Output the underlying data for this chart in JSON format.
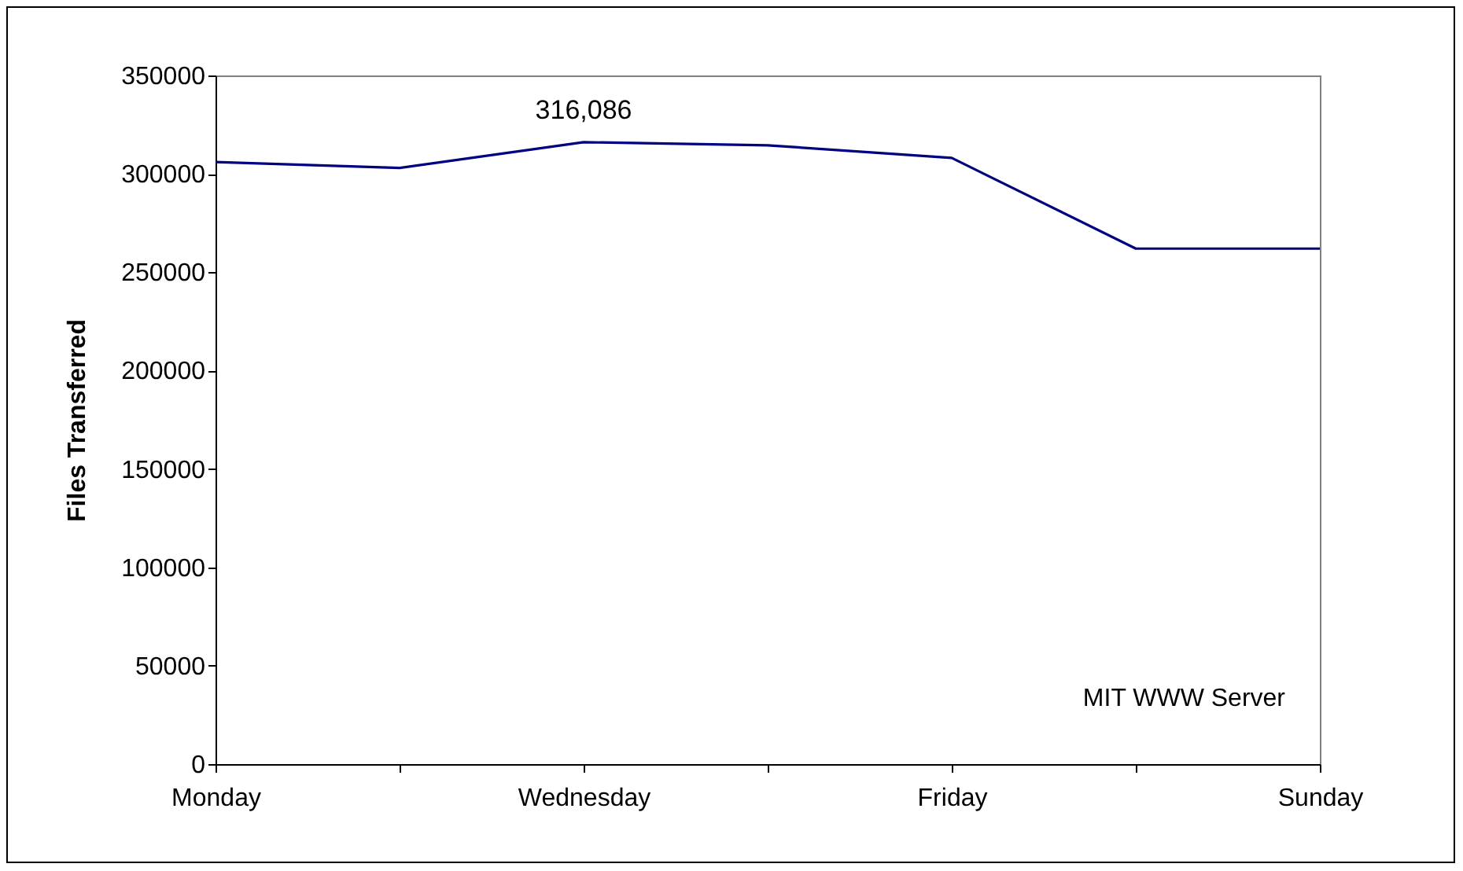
{
  "chart_data": {
    "type": "line",
    "ylabel": "Files Transferred",
    "categories": [
      "Monday",
      null,
      "Wednesday",
      null,
      "Friday",
      null,
      "Sunday"
    ],
    "series": [
      {
        "color": "#000080",
        "values": [
          306000,
          303000,
          316086,
          314500,
          308100,
          262000,
          262000
        ],
        "value_labels": [
          null,
          null,
          "316,086",
          null,
          null,
          null,
          null
        ]
      }
    ],
    "ylim": [
      0,
      350000
    ],
    "yticks": [
      0,
      50000,
      100000,
      150000,
      200000,
      250000,
      300000,
      350000
    ],
    "grid": false,
    "annotations": [
      "MIT WWW Server"
    ]
  }
}
